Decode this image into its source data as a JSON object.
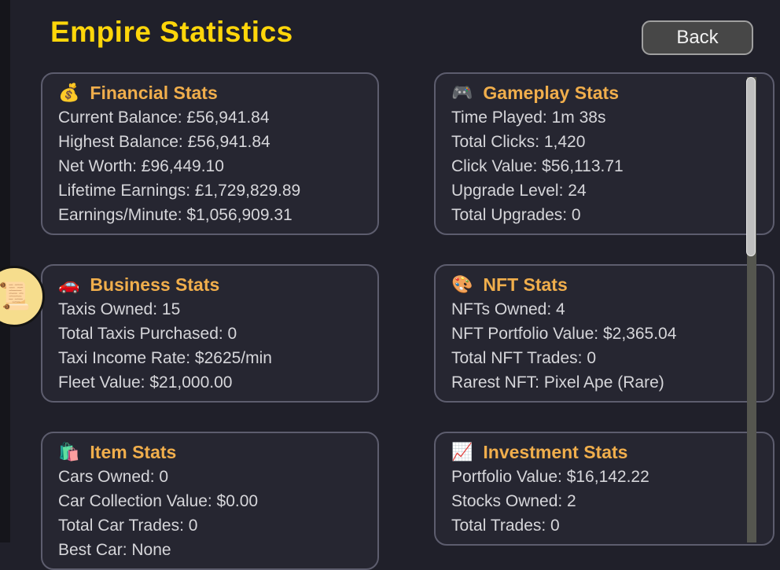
{
  "page": {
    "title": "Empire Statistics",
    "back_label": "Back"
  },
  "scroll_badge": {
    "icon": "📜"
  },
  "cards": [
    {
      "icon": "💰",
      "title": "Financial Stats",
      "lines": [
        "Current Balance: £56,941.84",
        "Highest Balance: £56,941.84",
        "Net Worth: £96,449.10",
        "Lifetime Earnings: £1,729,829.89",
        "Earnings/Minute: $1,056,909.31"
      ]
    },
    {
      "icon": "🎮",
      "title": "Gameplay Stats",
      "lines": [
        "Time Played: 1m 38s",
        "Total Clicks: 1,420",
        "Click Value: $56,113.71",
        "Upgrade Level: 24",
        "Total Upgrades: 0"
      ]
    },
    {
      "icon": "🚗",
      "title": "Business Stats",
      "lines": [
        "Taxis Owned: 15",
        "Total Taxis Purchased: 0",
        "Taxi Income Rate: $2625/min",
        "Fleet Value: $21,000.00"
      ]
    },
    {
      "icon": "🎨",
      "title": "NFT Stats",
      "lines": [
        "NFTs Owned: 4",
        "NFT Portfolio Value: $2,365.04",
        "Total NFT Trades: 0",
        "Rarest NFT: Pixel Ape (Rare)"
      ]
    },
    {
      "icon": "🛍️",
      "title": "Item Stats",
      "lines": [
        "Cars Owned: 0",
        "Car Collection Value: $0.00",
        "Total Car Trades: 0",
        "Best Car: None"
      ]
    },
    {
      "icon": "📈",
      "title": "Investment Stats",
      "lines": [
        "Portfolio Value: $16,142.22",
        "Stocks Owned: 2",
        "Total Trades: 0"
      ]
    }
  ],
  "colors": {
    "page_bg": "#20202a",
    "title_yellow": "#ffd60a",
    "header_gold": "#f0ae4c",
    "card_bg": "#262631",
    "card_border": "#5d5d6e",
    "body_text": "#d6d6da"
  }
}
